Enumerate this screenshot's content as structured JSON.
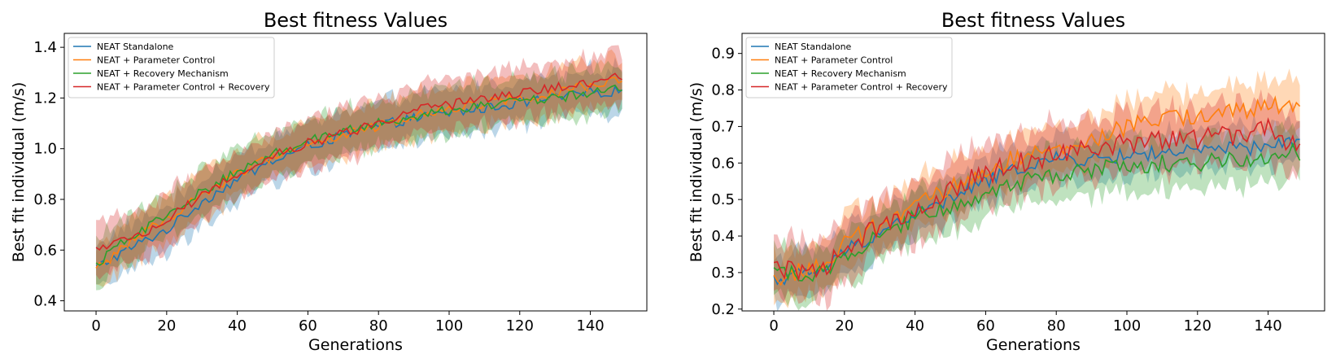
{
  "chart_data": [
    {
      "type": "line",
      "title": "Best fitness Values",
      "xlabel": "Generations",
      "ylabel": "Best fit individual (m/s)",
      "xlim": [
        -9,
        156
      ],
      "ylim": [
        0.36,
        1.455
      ],
      "xticks": [
        "0",
        "20",
        "40",
        "60",
        "80",
        "100",
        "120",
        "140"
      ],
      "yticks": [
        "0.4",
        "0.6",
        "0.8",
        "1.0",
        "1.2",
        "1.4"
      ],
      "legend_position": "upper-left",
      "series": [
        {
          "name": "NEAT Standalone",
          "color": "#1f77b4",
          "anchors": [
            [
              0,
              0.53
            ],
            [
              10,
              0.61
            ],
            [
              20,
              0.68
            ],
            [
              30,
              0.79
            ],
            [
              40,
              0.88
            ],
            [
              50,
              0.95
            ],
            [
              60,
              1.01
            ],
            [
              70,
              1.05
            ],
            [
              80,
              1.09
            ],
            [
              90,
              1.12
            ],
            [
              100,
              1.14
            ],
            [
              110,
              1.16
            ],
            [
              120,
              1.18
            ],
            [
              130,
              1.2
            ],
            [
              140,
              1.22
            ],
            [
              149,
              1.23
            ]
          ],
          "band": 0.09,
          "noise": 0.02
        },
        {
          "name": "NEAT + Parameter Control",
          "color": "#ff7f0e",
          "anchors": [
            [
              0,
              0.52
            ],
            [
              10,
              0.64
            ],
            [
              20,
              0.72
            ],
            [
              30,
              0.82
            ],
            [
              40,
              0.9
            ],
            [
              50,
              0.97
            ],
            [
              60,
              1.02
            ],
            [
              70,
              1.05
            ],
            [
              80,
              1.09
            ],
            [
              90,
              1.13
            ],
            [
              100,
              1.16
            ],
            [
              110,
              1.18
            ],
            [
              120,
              1.2
            ],
            [
              130,
              1.22
            ],
            [
              140,
              1.25
            ],
            [
              149,
              1.27
            ]
          ],
          "band": 0.09,
          "noise": 0.02
        },
        {
          "name": "NEAT + Recovery Mechanism",
          "color": "#2ca02c",
          "anchors": [
            [
              0,
              0.54
            ],
            [
              10,
              0.66
            ],
            [
              20,
              0.73
            ],
            [
              30,
              0.83
            ],
            [
              40,
              0.91
            ],
            [
              50,
              0.98
            ],
            [
              60,
              1.03
            ],
            [
              70,
              1.07
            ],
            [
              80,
              1.1
            ],
            [
              90,
              1.13
            ],
            [
              100,
              1.15
            ],
            [
              110,
              1.17
            ],
            [
              120,
              1.19
            ],
            [
              130,
              1.2
            ],
            [
              140,
              1.22
            ],
            [
              149,
              1.24
            ]
          ],
          "band": 0.09,
          "noise": 0.02
        },
        {
          "name": "NEAT + Parameter Control + Recovery",
          "color": "#d62728",
          "anchors": [
            [
              0,
              0.6
            ],
            [
              10,
              0.64
            ],
            [
              20,
              0.72
            ],
            [
              30,
              0.82
            ],
            [
              40,
              0.9
            ],
            [
              50,
              0.97
            ],
            [
              60,
              1.02
            ],
            [
              70,
              1.06
            ],
            [
              80,
              1.1
            ],
            [
              90,
              1.15
            ],
            [
              100,
              1.17
            ],
            [
              110,
              1.2
            ],
            [
              120,
              1.22
            ],
            [
              130,
              1.24
            ],
            [
              140,
              1.26
            ],
            [
              149,
              1.29
            ]
          ],
          "band": 0.1,
          "noise": 0.02
        }
      ]
    },
    {
      "type": "line",
      "title": "Best fitness Values",
      "xlabel": "Generations",
      "ylabel": "Best fit individual (m/s)",
      "xlim": [
        -9,
        156
      ],
      "ylim": [
        0.195,
        0.955
      ],
      "xticks": [
        "0",
        "20",
        "40",
        "60",
        "80",
        "100",
        "120",
        "140"
      ],
      "yticks": [
        "0.2",
        "0.3",
        "0.4",
        "0.5",
        "0.6",
        "0.7",
        "0.8",
        "0.9"
      ],
      "legend_position": "upper-left",
      "series": [
        {
          "name": "NEAT Standalone",
          "color": "#1f77b4",
          "anchors": [
            [
              0,
              0.28
            ],
            [
              10,
              0.3
            ],
            [
              15,
              0.31
            ],
            [
              20,
              0.36
            ],
            [
              30,
              0.41
            ],
            [
              40,
              0.46
            ],
            [
              50,
              0.5
            ],
            [
              60,
              0.55
            ],
            [
              70,
              0.59
            ],
            [
              80,
              0.61
            ],
            [
              90,
              0.61
            ],
            [
              100,
              0.62
            ],
            [
              110,
              0.63
            ],
            [
              120,
              0.63
            ],
            [
              130,
              0.64
            ],
            [
              140,
              0.64
            ],
            [
              149,
              0.67
            ]
          ],
          "band": 0.06,
          "noise": 0.02
        },
        {
          "name": "NEAT + Parameter Control",
          "color": "#ff7f0e",
          "anchors": [
            [
              0,
              0.28
            ],
            [
              10,
              0.31
            ],
            [
              15,
              0.32
            ],
            [
              20,
              0.38
            ],
            [
              30,
              0.43
            ],
            [
              40,
              0.48
            ],
            [
              50,
              0.53
            ],
            [
              60,
              0.58
            ],
            [
              70,
              0.62
            ],
            [
              80,
              0.63
            ],
            [
              90,
              0.66
            ],
            [
              100,
              0.7
            ],
            [
              110,
              0.72
            ],
            [
              120,
              0.73
            ],
            [
              130,
              0.74
            ],
            [
              140,
              0.75
            ],
            [
              149,
              0.77
            ]
          ],
          "band": 0.07,
          "noise": 0.025
        },
        {
          "name": "NEAT + Recovery Mechanism",
          "color": "#2ca02c",
          "anchors": [
            [
              0,
              0.3
            ],
            [
              10,
              0.3
            ],
            [
              15,
              0.3
            ],
            [
              20,
              0.35
            ],
            [
              30,
              0.4
            ],
            [
              40,
              0.45
            ],
            [
              50,
              0.48
            ],
            [
              60,
              0.52
            ],
            [
              70,
              0.55
            ],
            [
              80,
              0.57
            ],
            [
              90,
              0.58
            ],
            [
              100,
              0.59
            ],
            [
              110,
              0.6
            ],
            [
              120,
              0.6
            ],
            [
              130,
              0.61
            ],
            [
              140,
              0.62
            ],
            [
              149,
              0.63
            ]
          ],
          "band": 0.07,
          "noise": 0.025
        },
        {
          "name": "NEAT + Parameter Control + Recovery",
          "color": "#d62728",
          "anchors": [
            [
              0,
              0.31
            ],
            [
              10,
              0.3
            ],
            [
              15,
              0.32
            ],
            [
              20,
              0.37
            ],
            [
              30,
              0.43
            ],
            [
              40,
              0.48
            ],
            [
              50,
              0.53
            ],
            [
              60,
              0.57
            ],
            [
              70,
              0.6
            ],
            [
              80,
              0.62
            ],
            [
              90,
              0.64
            ],
            [
              100,
              0.65
            ],
            [
              110,
              0.66
            ],
            [
              120,
              0.67
            ],
            [
              130,
              0.67
            ],
            [
              140,
              0.7
            ],
            [
              149,
              0.63
            ]
          ],
          "band": 0.08,
          "noise": 0.03
        }
      ]
    }
  ]
}
